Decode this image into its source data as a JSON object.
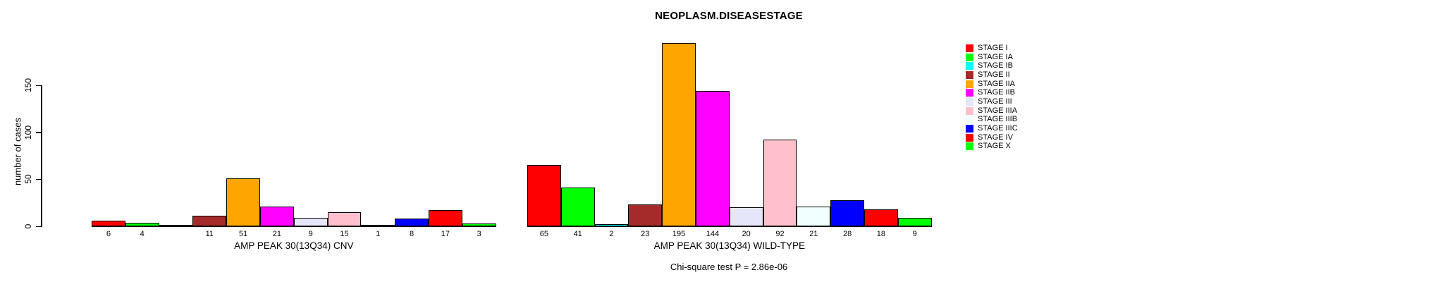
{
  "chart_data": {
    "type": "bar",
    "title": "NEOPLASM.DISEASESTAGE",
    "ylabel": "number of cases",
    "yticks": [
      0,
      50,
      100,
      150
    ],
    "ylim": [
      0,
      150
    ],
    "grid": false,
    "legend_position": "right",
    "categories": [
      "STAGE I",
      "STAGE IA",
      "STAGE IB",
      "STAGE II",
      "STAGE IIA",
      "STAGE IIB",
      "STAGE III",
      "STAGE IIIA",
      "STAGE IIIB",
      "STAGE IIIC",
      "STAGE IV",
      "STAGE X"
    ],
    "colors": [
      "#FF0000",
      "#00FF00",
      "#00FFFF",
      "#A52A2A",
      "#FFA500",
      "#FF00FF",
      "#E6E6FA",
      "#FFC0CB",
      "#F0FFFF",
      "#0000FF",
      "#FF0000",
      "#00FF00"
    ],
    "groups": [
      {
        "label": "AMP PEAK 30(13Q34) CNV",
        "values": [
          6,
          4,
          0,
          11,
          51,
          21,
          9,
          15,
          1,
          8,
          17,
          3
        ],
        "bar_labels": [
          "6",
          "4",
          "",
          "11",
          "51",
          "21",
          "9",
          "15",
          "1",
          "8",
          "17",
          "3"
        ]
      },
      {
        "label": "AMP PEAK 30(13Q34) WILD-TYPE",
        "values": [
          65,
          41,
          2,
          23,
          195,
          144,
          20,
          92,
          21,
          28,
          18,
          9
        ],
        "bar_labels": [
          "65",
          "41",
          "2",
          "23",
          "195",
          "144",
          "20",
          "92",
          "21",
          "28",
          "18",
          "9"
        ]
      }
    ],
    "annotation": "Chi-square test P = 2.86e-06"
  }
}
